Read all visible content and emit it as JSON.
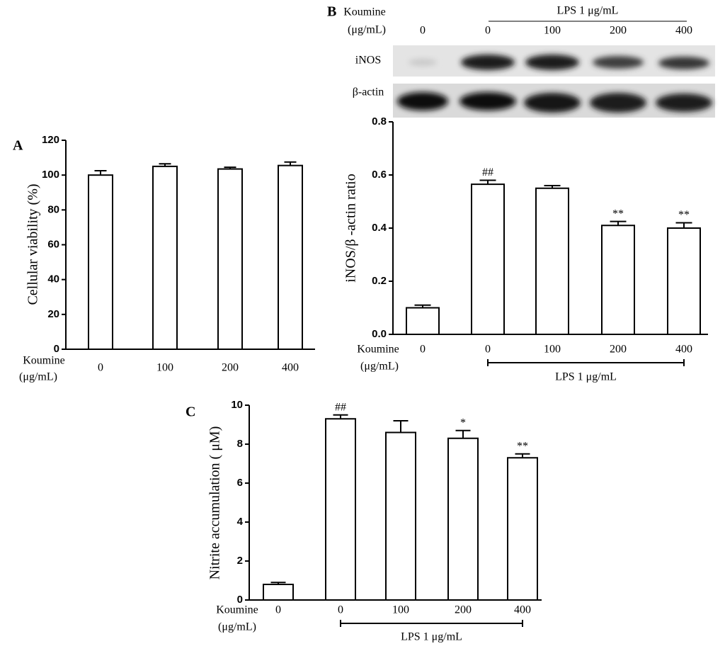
{
  "blot": {
    "panel": "B",
    "x_label": [
      "Koumine",
      "(μg/mL)"
    ],
    "lanes": [
      "0",
      "0",
      "100",
      "200",
      "400"
    ],
    "group_label": "LPS 1 μg/mL",
    "rows": [
      "iNOS",
      "β-actin"
    ]
  },
  "chart_data": [
    {
      "type": "bar",
      "panel": "A",
      "y_label": "Cellular viability (%)",
      "x_label": [
        "Koumine",
        "(μg/mL)"
      ],
      "categories": [
        "0",
        "100",
        "200",
        "400"
      ],
      "values": [
        100,
        105,
        103.5,
        105.5
      ],
      "errors": [
        2.5,
        1.5,
        1,
        2
      ],
      "color": "#ffffff",
      "ylim": [
        0,
        120
      ],
      "yticks": [
        0,
        20,
        40,
        60,
        80,
        100,
        120
      ]
    },
    {
      "type": "bar",
      "y_label": "iNOS/β -actin ratio",
      "x_label": [
        "Koumine",
        "(μg/mL)"
      ],
      "categories": [
        "0",
        "0",
        "100",
        "200",
        "400"
      ],
      "values": [
        0.1,
        0.565,
        0.55,
        0.41,
        0.4
      ],
      "errors": [
        0.01,
        0.015,
        0.01,
        0.015,
        0.02
      ],
      "annotations": [
        null,
        "##",
        null,
        "**",
        "**"
      ],
      "group_label": "LPS 1 μg/mL",
      "color": "#ffffff",
      "ylim": [
        0,
        0.8
      ],
      "yticks": [
        {
          "value": 0,
          "label": "0.0"
        },
        0.2,
        0.4,
        0.6,
        0.8
      ]
    },
    {
      "type": "bar",
      "panel": "C",
      "y_label": "Nitrite accumulation ( μM)",
      "x_label": [
        "Koumine",
        "(μg/mL)"
      ],
      "categories": [
        "0",
        "0",
        "100",
        "200",
        "400"
      ],
      "values": [
        0.8,
        9.3,
        8.6,
        8.3,
        7.3
      ],
      "errors": [
        0.1,
        0.2,
        0.6,
        0.4,
        0.2
      ],
      "annotations": [
        null,
        "##",
        null,
        "*",
        "**"
      ],
      "group_label": "LPS 1 μg/mL",
      "color": "#ffffff",
      "ylim": [
        0,
        10
      ],
      "yticks": [
        0,
        2,
        4,
        6,
        8,
        10
      ]
    }
  ]
}
